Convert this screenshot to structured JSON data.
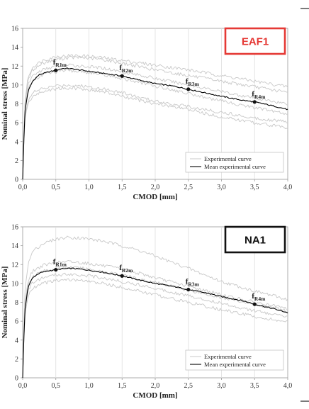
{
  "chart_data": [
    {
      "type": "line",
      "id": "eaf1",
      "badge": "EAF1",
      "badge_color": "#e53935",
      "xlabel": "CMOD [mm]",
      "ylabel": "Nominal stress [MPa]",
      "xlim": [
        0,
        4
      ],
      "ylim": [
        0,
        16
      ],
      "xticks": [
        "0,0",
        "0,5",
        "1,0",
        "1,5",
        "2,0",
        "2,5",
        "3,0",
        "3,5",
        "4,0"
      ],
      "yticks": [
        "0",
        "2",
        "4",
        "6",
        "8",
        "10",
        "12",
        "14",
        "16"
      ],
      "grid": "vertical",
      "legend": {
        "position": "bottom-right",
        "entries": [
          "Experimental curve",
          "Mean experimental curve"
        ]
      },
      "series": [
        {
          "name": "Mean experimental curve",
          "color": "#000000",
          "x": [
            0,
            0.03,
            0.08,
            0.15,
            0.25,
            0.4,
            0.5,
            0.6,
            0.7,
            0.8,
            1.0,
            1.2,
            1.5,
            1.8,
            2.0,
            2.3,
            2.5,
            2.8,
            3.0,
            3.3,
            3.5,
            3.8,
            4.0
          ],
          "y": [
            0,
            7.0,
            9.3,
            10.4,
            11.1,
            11.4,
            11.55,
            11.75,
            11.75,
            11.65,
            11.45,
            11.25,
            10.95,
            10.45,
            10.15,
            9.85,
            9.55,
            9.1,
            8.8,
            8.4,
            8.2,
            7.75,
            7.4
          ]
        },
        {
          "name": "Experimental curve",
          "color": "#c8c8c8",
          "x": [
            0,
            0.03,
            0.08,
            0.15,
            0.3,
            0.5,
            0.7,
            0.9,
            1.2,
            1.5,
            1.8,
            2.0,
            2.5,
            3.0,
            3.5,
            4.0
          ],
          "y": [
            0,
            8.0,
            10.8,
            11.9,
            12.6,
            13.0,
            13.1,
            13.1,
            12.9,
            12.6,
            12.3,
            12.1,
            11.6,
            11.0,
            10.4,
            9.8
          ]
        },
        {
          "name": "Experimental curve",
          "color": "#c8c8c8",
          "x": [
            0,
            0.03,
            0.08,
            0.15,
            0.3,
            0.5,
            0.7,
            0.9,
            1.2,
            1.5,
            1.8,
            2.0,
            2.5,
            3.0,
            3.5,
            4.0
          ],
          "y": [
            0,
            7.8,
            10.5,
            11.6,
            12.3,
            12.7,
            12.9,
            12.9,
            12.7,
            12.3,
            11.9,
            11.6,
            11.0,
            10.4,
            9.8,
            9.2
          ]
        },
        {
          "name": "Experimental curve",
          "color": "#c8c8c8",
          "x": [
            0,
            0.03,
            0.08,
            0.15,
            0.3,
            0.5,
            0.7,
            0.9,
            1.2,
            1.5,
            1.8,
            2.0,
            2.5,
            3.0,
            3.5,
            4.0
          ],
          "y": [
            0,
            7.5,
            10.0,
            11.0,
            11.6,
            12.0,
            12.1,
            12.0,
            11.8,
            11.4,
            11.0,
            10.7,
            10.0,
            9.3,
            8.6,
            8.0
          ]
        },
        {
          "name": "Experimental curve",
          "color": "#c8c8c8",
          "x": [
            0,
            0.03,
            0.08,
            0.15,
            0.3,
            0.5,
            0.7,
            0.9,
            1.2,
            1.5,
            1.8,
            2.0,
            2.5,
            3.0,
            3.5,
            4.0
          ],
          "y": [
            0,
            6.5,
            8.4,
            9.2,
            9.6,
            9.9,
            10.0,
            9.9,
            9.6,
            9.2,
            8.6,
            8.3,
            7.7,
            7.1,
            6.5,
            6.1
          ]
        },
        {
          "name": "Experimental curve",
          "color": "#c8c8c8",
          "x": [
            0,
            0.03,
            0.08,
            0.15,
            0.3,
            0.5,
            0.7,
            0.9,
            1.2,
            1.5,
            1.8,
            2.0,
            2.5,
            3.0,
            3.5,
            4.0
          ],
          "y": [
            0,
            6.2,
            8.0,
            8.8,
            9.3,
            9.6,
            9.7,
            9.6,
            9.3,
            8.8,
            8.3,
            8.0,
            7.4,
            6.6,
            6.0,
            5.5
          ]
        },
        {
          "name": "Experimental curve",
          "color": "#c8c8c8",
          "x": [
            0,
            0.03,
            0.08,
            0.15,
            0.3,
            0.5,
            0.7,
            0.9,
            1.2,
            1.5,
            1.8,
            2.0,
            2.5,
            3.0,
            3.5,
            4.0
          ],
          "y": [
            0,
            7.2,
            9.6,
            10.5,
            11.1,
            11.4,
            11.5,
            11.4,
            11.1,
            10.7,
            10.2,
            9.9,
            9.1,
            8.3,
            7.6,
            6.9
          ]
        }
      ],
      "markers": [
        {
          "name": "f_R1m",
          "main": "f",
          "sub": "R1m",
          "x": 0.5,
          "y": 11.55
        },
        {
          "name": "f_R2m",
          "main": "f",
          "sub": "R2m",
          "x": 1.5,
          "y": 10.95
        },
        {
          "name": "f_R3m",
          "main": "f",
          "sub": "R3m",
          "x": 2.5,
          "y": 9.55
        },
        {
          "name": "f_R4m",
          "main": "f",
          "sub": "R4m",
          "x": 3.5,
          "y": 8.2
        }
      ]
    },
    {
      "type": "line",
      "id": "na1",
      "badge": "NA1",
      "badge_color": "#111111",
      "xlabel": "CMOD [mm]",
      "ylabel": "Nominal stress [MPa]",
      "xlim": [
        0,
        4
      ],
      "ylim": [
        0,
        16
      ],
      "xticks": [
        "0,0",
        "0,5",
        "1,0",
        "1,5",
        "2,0",
        "2,5",
        "3,0",
        "3,5",
        "4,0"
      ],
      "yticks": [
        "0",
        "2",
        "4",
        "6",
        "8",
        "10",
        "12",
        "14",
        "16"
      ],
      "grid": "vertical",
      "legend": {
        "position": "bottom-right",
        "entries": [
          "Experimental curve",
          "Mean experimental curve"
        ]
      },
      "series": [
        {
          "name": "Mean experimental curve",
          "color": "#000000",
          "x": [
            0,
            0.03,
            0.08,
            0.15,
            0.25,
            0.4,
            0.5,
            0.6,
            0.75,
            0.9,
            1.0,
            1.2,
            1.5,
            1.8,
            2.0,
            2.3,
            2.5,
            2.8,
            3.0,
            3.3,
            3.5,
            3.8,
            4.0
          ],
          "y": [
            0,
            7.0,
            9.6,
            10.6,
            11.1,
            11.35,
            11.45,
            11.55,
            11.6,
            11.5,
            11.4,
            11.2,
            10.8,
            10.3,
            10.0,
            9.65,
            9.35,
            8.95,
            8.6,
            8.2,
            7.8,
            7.3,
            6.9
          ]
        },
        {
          "name": "Experimental curve",
          "color": "#c8c8c8",
          "x": [
            0,
            0.03,
            0.08,
            0.15,
            0.3,
            0.5,
            0.7,
            0.9,
            1.2,
            1.5,
            1.8,
            2.0,
            2.5,
            3.0,
            3.5,
            4.0
          ],
          "y": [
            0,
            9.0,
            12.0,
            13.4,
            14.2,
            14.7,
            14.9,
            14.8,
            14.5,
            14.0,
            13.4,
            12.9,
            11.6,
            10.2,
            9.2,
            8.3
          ]
        },
        {
          "name": "Experimental curve",
          "color": "#c8c8c8",
          "x": [
            0,
            0.03,
            0.08,
            0.15,
            0.3,
            0.5,
            0.7,
            0.9,
            1.2,
            1.5,
            1.8,
            2.0,
            2.5,
            3.0,
            3.5,
            4.0
          ],
          "y": [
            0,
            7.6,
            10.3,
            11.3,
            11.9,
            12.2,
            12.3,
            12.2,
            11.9,
            11.5,
            11.0,
            10.6,
            9.7,
            8.8,
            8.0,
            7.3
          ]
        },
        {
          "name": "Experimental curve",
          "color": "#c8c8c8",
          "x": [
            0,
            0.03,
            0.08,
            0.15,
            0.3,
            0.5,
            0.7,
            0.9,
            1.2,
            1.5,
            1.8,
            2.0,
            2.5,
            3.0,
            3.5,
            4.0
          ],
          "y": [
            0,
            7.2,
            9.8,
            10.8,
            11.3,
            11.6,
            11.7,
            11.6,
            11.3,
            10.9,
            10.4,
            10.1,
            9.3,
            8.5,
            7.8,
            7.1
          ]
        },
        {
          "name": "Experimental curve",
          "color": "#c8c8c8",
          "x": [
            0,
            0.03,
            0.08,
            0.15,
            0.3,
            0.5,
            0.7,
            0.9,
            1.2,
            1.5,
            1.8,
            2.0,
            2.5,
            3.0,
            3.5,
            4.0
          ],
          "y": [
            0,
            6.8,
            9.2,
            10.1,
            10.6,
            10.9,
            11.0,
            10.9,
            10.6,
            10.2,
            9.8,
            9.5,
            8.7,
            7.9,
            7.1,
            6.4
          ]
        },
        {
          "name": "Experimental curve",
          "color": "#c8c8c8",
          "x": [
            0,
            0.03,
            0.08,
            0.15,
            0.3,
            0.5,
            0.7,
            0.9,
            1.2,
            1.5,
            1.8,
            2.0,
            2.5,
            3.0,
            3.5,
            4.0
          ],
          "y": [
            0,
            6.4,
            8.6,
            9.5,
            10.0,
            10.3,
            10.4,
            10.3,
            10.0,
            9.6,
            9.1,
            8.8,
            8.0,
            7.2,
            6.5,
            5.9
          ]
        }
      ],
      "markers": [
        {
          "name": "f_R1m",
          "main": "f",
          "sub": "R1m",
          "x": 0.5,
          "y": 11.45
        },
        {
          "name": "f_R2m",
          "main": "f",
          "sub": "R2m",
          "x": 1.5,
          "y": 10.8
        },
        {
          "name": "f_R3m",
          "main": "f",
          "sub": "R3m",
          "x": 2.5,
          "y": 9.35
        },
        {
          "name": "f_R4m",
          "main": "f",
          "sub": "R4m",
          "x": 3.5,
          "y": 7.8
        }
      ]
    }
  ]
}
